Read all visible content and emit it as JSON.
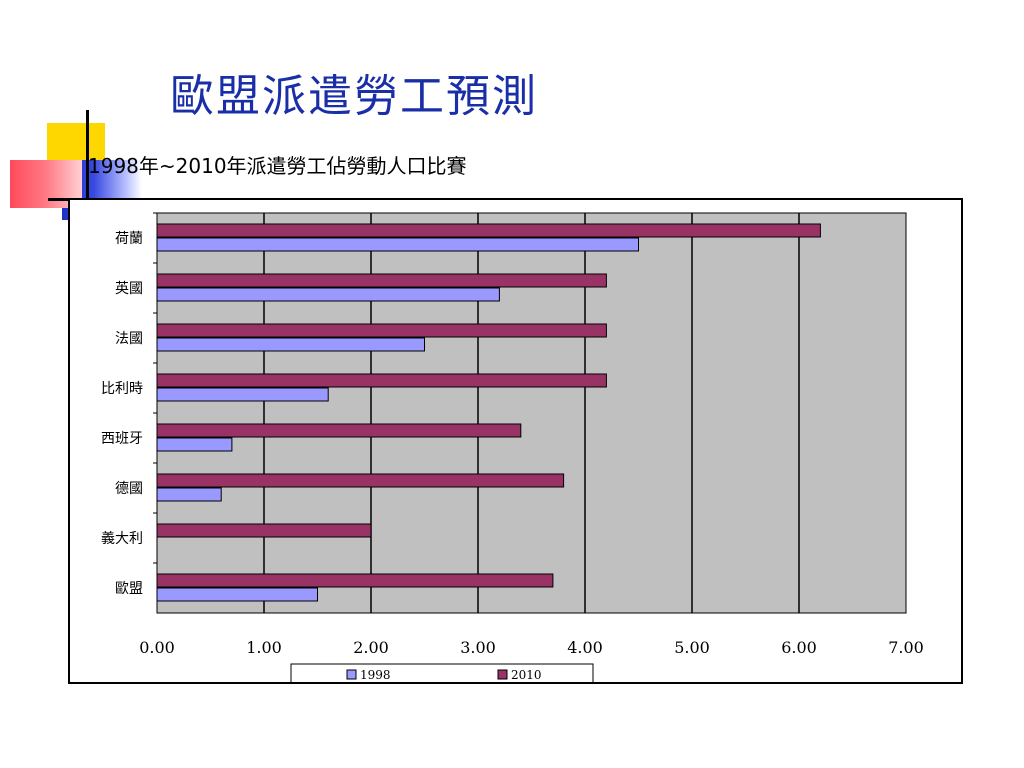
{
  "slide": {
    "title": "歐盟派遣勞工預測"
  },
  "chart_data": {
    "type": "bar",
    "orientation": "horizontal",
    "title": "1998年~2010年派遣勞工佔勞動人口比賽",
    "categories": [
      "荷蘭",
      "英國",
      "法國",
      "比利時",
      "西班牙",
      "德國",
      "義大利",
      "歐盟"
    ],
    "series": [
      {
        "name": "2010",
        "color": "#993366",
        "values": [
          6.2,
          4.2,
          4.2,
          4.2,
          3.4,
          3.8,
          2.0,
          3.7
        ]
      },
      {
        "name": "1998",
        "color": "#9999ff",
        "values": [
          4.5,
          3.2,
          2.5,
          1.6,
          0.7,
          0.6,
          0,
          1.5
        ]
      }
    ],
    "xlim": [
      0,
      7
    ],
    "xticks": [
      "0.00",
      "1.00",
      "2.00",
      "3.00",
      "4.00",
      "5.00",
      "6.00",
      "7.00"
    ],
    "grid": true,
    "plot_background": "#c0c0c0",
    "legend_position": "bottom",
    "legend": [
      {
        "label": "1998",
        "color": "#9999ff"
      },
      {
        "label": "2010",
        "color": "#993366"
      }
    ]
  }
}
